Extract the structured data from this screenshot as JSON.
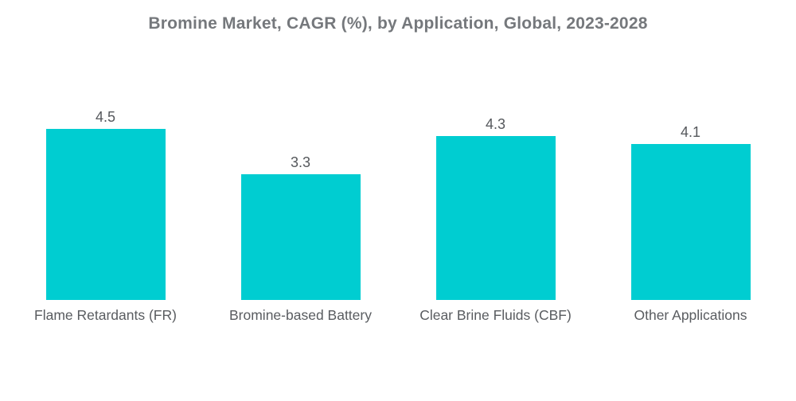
{
  "chart_data": {
    "type": "bar",
    "title": "Bromine Market, CAGR (%), by Application, Global, 2023-2028",
    "categories": [
      "Flame Retardants (FR)",
      "Bromine-based Battery",
      "Clear Brine Fluids (CBF)",
      "Other Applications"
    ],
    "values": [
      4.5,
      3.3,
      4.3,
      4.1
    ],
    "value_labels": [
      "4.5",
      "3.3",
      "4.3",
      "4.1"
    ],
    "xlabel": "",
    "ylabel": "",
    "ylim": [
      0,
      5
    ],
    "grid": false,
    "legend": "none",
    "colors": {
      "bar": "#00cdd1",
      "title_text": "#75787c",
      "value_text": "#55585c",
      "category_text": "#595c60",
      "background": "#ffffff"
    }
  }
}
